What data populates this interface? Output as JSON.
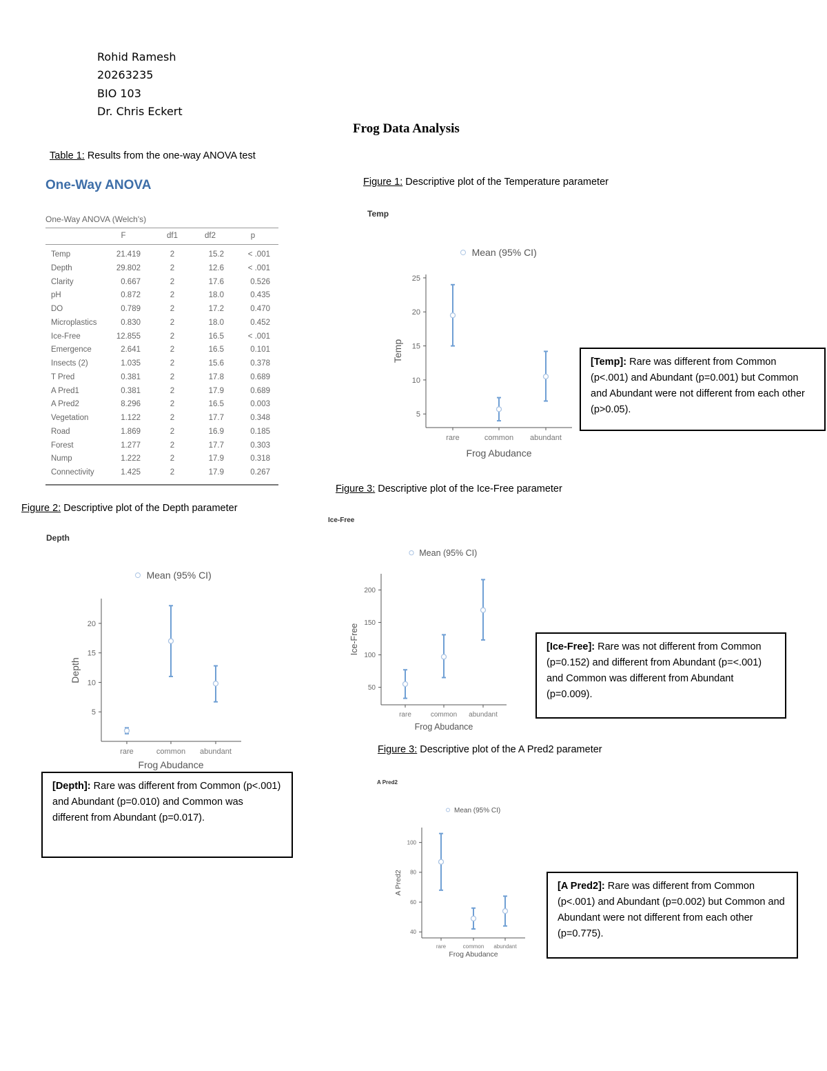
{
  "header": {
    "name": "Rohid Ramesh",
    "id": "20263235",
    "course": "BIO 103",
    "instructor": "Dr. Chris Eckert"
  },
  "title": "Frog Data Analysis",
  "table1": {
    "caption_label": "Table 1:",
    "caption_text": " Results from the one-way ANOVA test",
    "heading": "One-Way ANOVA",
    "subtitle": "One-Way ANOVA (Welch's)",
    "columns": [
      "",
      "F",
      "df1",
      "df2",
      "p"
    ],
    "rows": [
      [
        "Temp",
        "21.419",
        "2",
        "15.2",
        "< .001"
      ],
      [
        "Depth",
        "29.802",
        "2",
        "12.6",
        "< .001"
      ],
      [
        "Clarity",
        "0.667",
        "2",
        "17.6",
        "0.526"
      ],
      [
        "pH",
        "0.872",
        "2",
        "18.0",
        "0.435"
      ],
      [
        "DO",
        "0.789",
        "2",
        "17.2",
        "0.470"
      ],
      [
        "Microplastics",
        "0.830",
        "2",
        "18.0",
        "0.452"
      ],
      [
        "Ice-Free",
        "12.855",
        "2",
        "16.5",
        "< .001"
      ],
      [
        "Emergence",
        "2.641",
        "2",
        "16.5",
        "0.101"
      ],
      [
        "Insects (2)",
        "1.035",
        "2",
        "15.6",
        "0.378"
      ],
      [
        "T Pred",
        "0.381",
        "2",
        "17.8",
        "0.689"
      ],
      [
        "A Pred1",
        "0.381",
        "2",
        "17.9",
        "0.689"
      ],
      [
        "A Pred2",
        "8.296",
        "2",
        "16.5",
        "0.003"
      ],
      [
        "Vegetation",
        "1.122",
        "2",
        "17.7",
        "0.348"
      ],
      [
        "Road",
        "1.869",
        "2",
        "16.9",
        "0.185"
      ],
      [
        "Forest",
        "1.277",
        "2",
        "17.7",
        "0.303"
      ],
      [
        "Nump",
        "1.222",
        "2",
        "17.9",
        "0.318"
      ],
      [
        "Connectivity",
        "1.425",
        "2",
        "17.9",
        "0.267"
      ]
    ]
  },
  "figures": [
    {
      "caption_label": "Figure 1:",
      "caption_text": " Descriptive plot of the Temperature parameter"
    },
    {
      "caption_label": "Figure 2:",
      "caption_text": " Descriptive plot of the Depth parameter"
    },
    {
      "caption_label": "Figure 3:",
      "caption_text": " Descriptive plot of the Ice-Free parameter"
    },
    {
      "caption_label": "Figure 3:",
      "caption_text": " Descriptive plot of the A Pred2 parameter"
    }
  ],
  "notes": {
    "temp": {
      "label": "[Temp]:",
      "text": " Rare was different from Common (p<.001) and Abundant (p=0.001) but Common and Abundant were not different from each other (p>0.05)."
    },
    "depth": {
      "label": "[Depth]:",
      "text": " Rare was different from Common (p<.001) and Abundant (p=0.010) and Common was different from Abundant (p=0.017)."
    },
    "icefree": {
      "label": "[Ice-Free]:",
      "text": " Rare was not different from Common (p=0.152) and different from Abundant (p=<.001) and Common was different from Abundant (p=0.009)."
    },
    "apred2": {
      "label": "[A Pred2]:",
      "text": " Rare was different from Common (p<.001) and Abundant (p=0.002) but Common and Abundant were not different from each other (p=0.775)."
    }
  },
  "colors": {
    "series": "#6f9fd4",
    "heading": "#3d6ea8",
    "axis": "#555555"
  },
  "chart_data": [
    {
      "type": "errorbar",
      "title": "Temp",
      "legend": "Mean (95% CI)",
      "legend_position": "top",
      "xlabel": "Frog Abudance",
      "ylabel": "Temp",
      "categories": [
        "rare",
        "common",
        "abundant"
      ],
      "mean": [
        19.5,
        5.7,
        10.5
      ],
      "ci_low": [
        15.0,
        4.0,
        6.9
      ],
      "ci_high": [
        24.0,
        7.4,
        14.2
      ],
      "yticks": [
        5,
        10,
        15,
        20,
        25
      ],
      "ylim": [
        3,
        25.5
      ],
      "grid": false
    },
    {
      "type": "errorbar",
      "title": "Depth",
      "legend": "Mean (95% CI)",
      "legend_position": "top",
      "xlabel": "Frog Abudance",
      "ylabel": "Depth",
      "categories": [
        "rare",
        "common",
        "abundant"
      ],
      "mean": [
        1.8,
        17.0,
        9.8
      ],
      "ci_low": [
        1.3,
        11.0,
        6.7
      ],
      "ci_high": [
        2.3,
        23.0,
        12.8
      ],
      "yticks": [
        5,
        10,
        15,
        20
      ],
      "ylim": [
        0,
        24.2
      ],
      "grid": false
    },
    {
      "type": "errorbar",
      "title": "Ice-Free",
      "legend": "Mean (95% CI)",
      "legend_position": "top",
      "xlabel": "Frog Abudance",
      "ylabel": "Ice-Free",
      "categories": [
        "rare",
        "common",
        "abundant"
      ],
      "mean": [
        55,
        97,
        169
      ],
      "ci_low": [
        33,
        65,
        123
      ],
      "ci_high": [
        77,
        131,
        216
      ],
      "yticks": [
        50,
        100,
        150,
        200
      ],
      "ylim": [
        23,
        225
      ],
      "grid": false
    },
    {
      "type": "errorbar",
      "title": "A Pred2",
      "legend": "Mean (95% CI)",
      "legend_position": "top",
      "xlabel": "Frog Abudance",
      "ylabel": "A Pred2",
      "categories": [
        "rare",
        "common",
        "abundant"
      ],
      "mean": [
        87,
        49,
        54
      ],
      "ci_low": [
        68,
        42,
        44
      ],
      "ci_high": [
        106,
        56,
        64
      ],
      "yticks": [
        40,
        60,
        80,
        100
      ],
      "ylim": [
        36,
        110
      ],
      "grid": false
    }
  ]
}
